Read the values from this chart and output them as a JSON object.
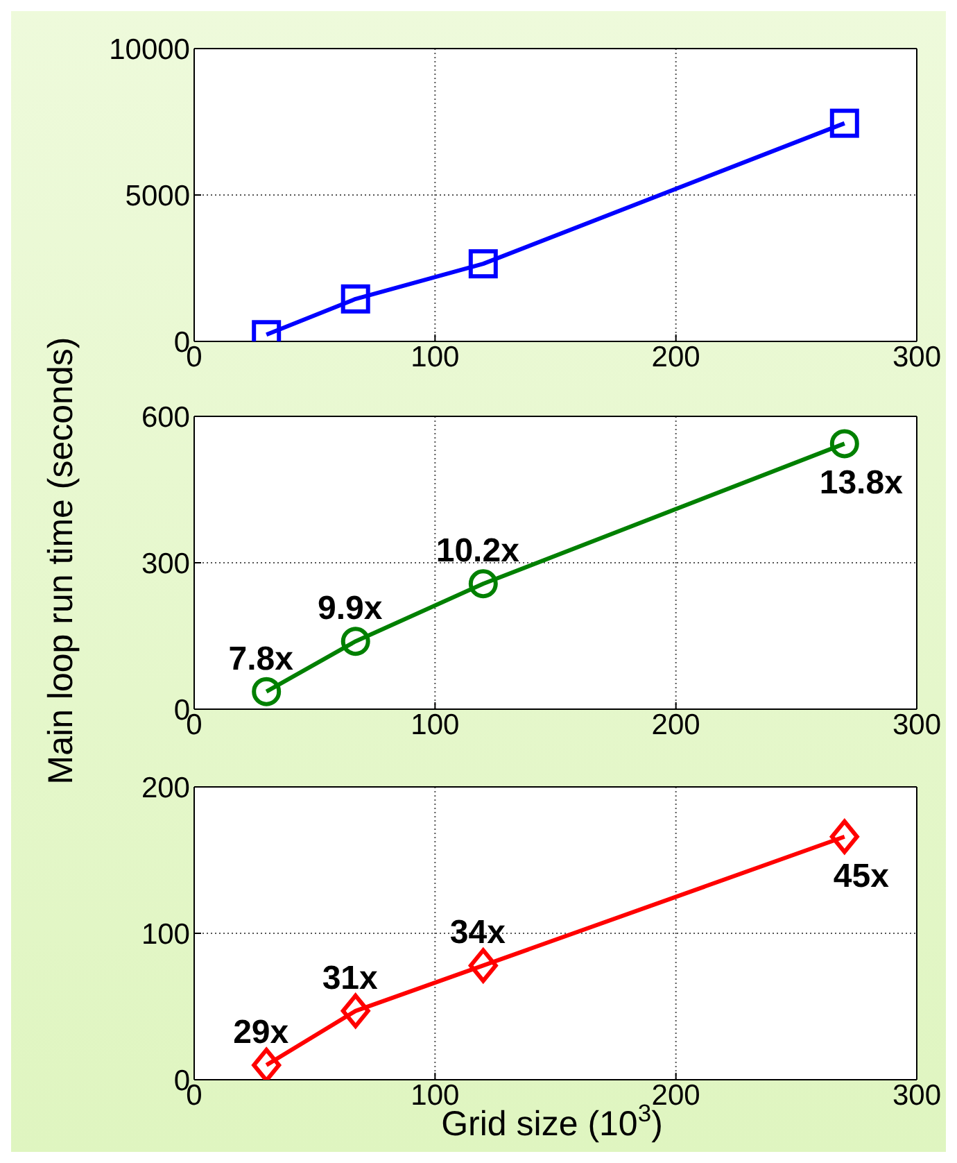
{
  "chart_data": [
    {
      "type": "line",
      "x": [
        30,
        67,
        120,
        270
      ],
      "xlim": [
        0,
        300
      ],
      "xticks": [
        0,
        100,
        200,
        300
      ],
      "ylim": [
        0,
        10000
      ],
      "yticks": [
        0,
        5000,
        10000
      ],
      "grid": true,
      "marker": "square",
      "legend": false,
      "series": [
        {
          "color": "#0000ff",
          "values": [
            230,
            1450,
            2650,
            7450
          ]
        }
      ]
    },
    {
      "type": "line",
      "x": [
        30,
        67,
        120,
        270
      ],
      "xlim": [
        0,
        300
      ],
      "xticks": [
        0,
        100,
        200,
        300
      ],
      "ylim": [
        0,
        600
      ],
      "yticks": [
        0,
        300,
        600
      ],
      "grid": true,
      "marker": "circle",
      "legend": false,
      "ylabel": "Main loop run time (seconds)",
      "annotations": [
        {
          "text": "7.8x",
          "x": 30,
          "y": 36
        },
        {
          "text": "9.9x",
          "x": 67,
          "y": 139
        },
        {
          "text": "10.2x",
          "x": 120,
          "y": 257
        },
        {
          "text": "13.8x",
          "x": 270,
          "y": 544
        }
      ],
      "series": [
        {
          "color": "#008000",
          "values": [
            36,
            139,
            257,
            544
          ]
        }
      ]
    },
    {
      "type": "line",
      "x": [
        30,
        67,
        120,
        270
      ],
      "xlim": [
        0,
        300
      ],
      "xticks": [
        0,
        100,
        200,
        300
      ],
      "ylim": [
        0,
        200
      ],
      "yticks": [
        0,
        100,
        200
      ],
      "grid": true,
      "marker": "diamond",
      "legend": false,
      "xlabel": "Grid size (10$^{3}$)",
      "annotations": [
        {
          "text": "29x",
          "x": 30,
          "y": 10
        },
        {
          "text": "31x",
          "x": 67,
          "y": 47
        },
        {
          "text": "34x",
          "x": 120,
          "y": 78
        },
        {
          "text": "45x",
          "x": 270,
          "y": 166
        }
      ],
      "series": [
        {
          "color": "#ff0000",
          "values": [
            10,
            47,
            78,
            166
          ]
        }
      ]
    }
  ]
}
